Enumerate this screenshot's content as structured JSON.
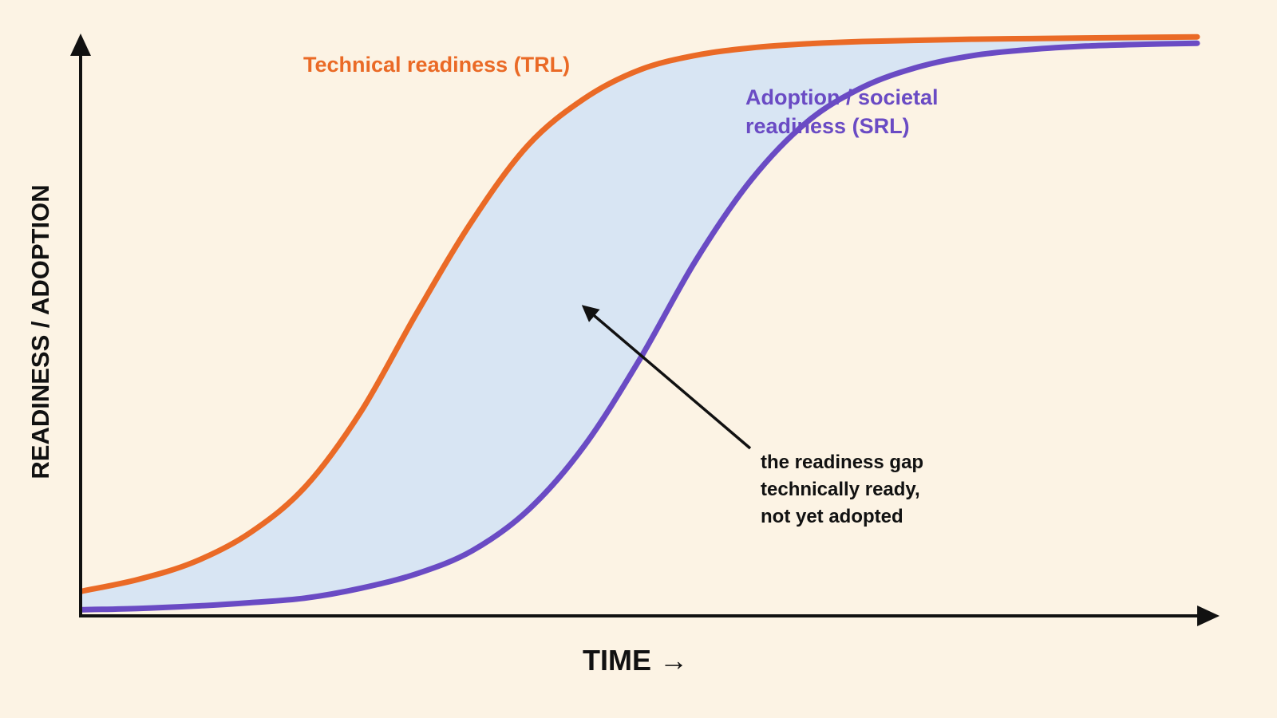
{
  "chart_data": {
    "type": "line",
    "title": "",
    "xlabel": "TIME →",
    "ylabel": "READINESS / ADOPTION",
    "xlim": [
      0,
      100
    ],
    "ylim": [
      0,
      100
    ],
    "grid": false,
    "fill_between": {
      "series": [
        "Technical readiness (TRL)",
        "Adoption / societal readiness (SRL)"
      ],
      "color": "#d8e5f3"
    },
    "series": [
      {
        "name": "Technical readiness (TRL)",
        "color": "#ea6a26",
        "label_lines": [
          "Technical readiness (TRL)"
        ],
        "x": [
          0,
          5,
          10,
          15,
          20,
          25,
          30,
          35,
          40,
          45,
          50,
          55,
          60,
          65,
          70,
          75,
          80,
          85,
          90,
          95,
          100
        ],
        "y": [
          4,
          6,
          9,
          14,
          22,
          35,
          52,
          68,
          81,
          89,
          94,
          96.5,
          97.8,
          98.5,
          98.9,
          99.1,
          99.3,
          99.4,
          99.5,
          99.6,
          99.7
        ]
      },
      {
        "name": "Adoption / societal readiness (SRL)",
        "color": "#6a4bc4",
        "label_lines": [
          "Adoption / societal readiness (SRL)"
        ],
        "x": [
          0,
          5,
          10,
          15,
          20,
          25,
          30,
          35,
          40,
          45,
          50,
          55,
          60,
          65,
          70,
          75,
          80,
          85,
          90,
          95,
          100
        ],
        "y": [
          0.8,
          1,
          1.4,
          2,
          2.8,
          4.5,
          7,
          11,
          18,
          29,
          44,
          61,
          75,
          85,
          91,
          94.5,
          96.5,
          97.5,
          98.1,
          98.4,
          98.6
        ]
      }
    ],
    "annotations": [
      {
        "lines": [
          "the readiness gap",
          "technically ready,",
          "not yet adopted"
        ],
        "arrow": true
      }
    ]
  }
}
